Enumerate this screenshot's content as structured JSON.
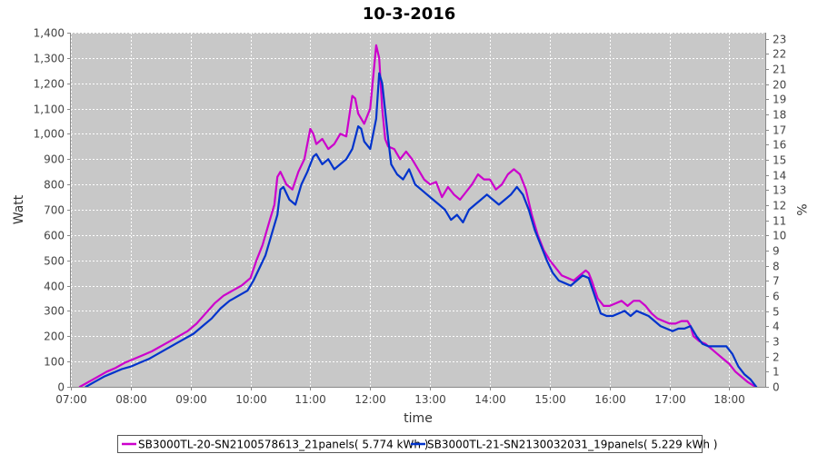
{
  "chart_data": {
    "type": "line",
    "title": "10-3-2016",
    "xlabel": "time",
    "ylabel": "Watt",
    "y2label": "%",
    "xlim": [
      7.0,
      18.6
    ],
    "ylim": [
      0,
      1400
    ],
    "y2lim": [
      0,
      23.4
    ],
    "x_ticks": [
      {
        "v": 7,
        "label": "07:00"
      },
      {
        "v": 8,
        "label": "08:00"
      },
      {
        "v": 9,
        "label": "09:00"
      },
      {
        "v": 10,
        "label": "10:00"
      },
      {
        "v": 11,
        "label": "11:00"
      },
      {
        "v": 12,
        "label": "12:00"
      },
      {
        "v": 13,
        "label": "13:00"
      },
      {
        "v": 14,
        "label": "14:00"
      },
      {
        "v": 15,
        "label": "15:00"
      },
      {
        "v": 16,
        "label": "16:00"
      },
      {
        "v": 17,
        "label": "17:00"
      },
      {
        "v": 18,
        "label": "18:00"
      }
    ],
    "y_ticks": [
      {
        "v": 0,
        "label": "0"
      },
      {
        "v": 100,
        "label": "100"
      },
      {
        "v": 200,
        "label": "200"
      },
      {
        "v": 300,
        "label": "300"
      },
      {
        "v": 400,
        "label": "400"
      },
      {
        "v": 500,
        "label": "500"
      },
      {
        "v": 600,
        "label": "600"
      },
      {
        "v": 700,
        "label": "700"
      },
      {
        "v": 800,
        "label": "800"
      },
      {
        "v": 900,
        "label": "900"
      },
      {
        "v": 1000,
        "label": "1,000"
      },
      {
        "v": 1100,
        "label": "1,100"
      },
      {
        "v": 1200,
        "label": "1,200"
      },
      {
        "v": 1300,
        "label": "1,300"
      },
      {
        "v": 1400,
        "label": "1,400"
      }
    ],
    "y2_ticks": [
      {
        "v": 0,
        "label": "0"
      },
      {
        "v": 1,
        "label": "1"
      },
      {
        "v": 2,
        "label": "2"
      },
      {
        "v": 3,
        "label": "3"
      },
      {
        "v": 4,
        "label": "4"
      },
      {
        "v": 5,
        "label": "5"
      },
      {
        "v": 6,
        "label": "6"
      },
      {
        "v": 7,
        "label": "7"
      },
      {
        "v": 8,
        "label": "8"
      },
      {
        "v": 9,
        "label": "9"
      },
      {
        "v": 10,
        "label": "10"
      },
      {
        "v": 11,
        "label": "11"
      },
      {
        "v": 12,
        "label": "12"
      },
      {
        "v": 13,
        "label": "13"
      },
      {
        "v": 14,
        "label": "14"
      },
      {
        "v": 15,
        "label": "15"
      },
      {
        "v": 16,
        "label": "16"
      },
      {
        "v": 17,
        "label": "17"
      },
      {
        "v": 18,
        "label": "18"
      },
      {
        "v": 19,
        "label": "19"
      },
      {
        "v": 20,
        "label": "20"
      },
      {
        "v": 21,
        "label": "21"
      },
      {
        "v": 22,
        "label": "22"
      },
      {
        "v": 23,
        "label": "23"
      }
    ],
    "grid": true,
    "legend_position": "bottom",
    "plot_background": "#c8c8c8",
    "series": [
      {
        "name": "SB3000TL-20-SN2100578613_21panels( 5.774 kWh )",
        "color": "#cc00cc",
        "points": [
          [
            7.15,
            0
          ],
          [
            7.3,
            20
          ],
          [
            7.45,
            40
          ],
          [
            7.6,
            60
          ],
          [
            7.75,
            75
          ],
          [
            7.9,
            95
          ],
          [
            8.05,
            110
          ],
          [
            8.2,
            125
          ],
          [
            8.35,
            140
          ],
          [
            8.5,
            160
          ],
          [
            8.65,
            180
          ],
          [
            8.8,
            200
          ],
          [
            8.95,
            220
          ],
          [
            9.1,
            250
          ],
          [
            9.25,
            290
          ],
          [
            9.4,
            330
          ],
          [
            9.55,
            360
          ],
          [
            9.7,
            380
          ],
          [
            9.85,
            400
          ],
          [
            10.0,
            430
          ],
          [
            10.1,
            500
          ],
          [
            10.2,
            560
          ],
          [
            10.3,
            640
          ],
          [
            10.4,
            720
          ],
          [
            10.45,
            830
          ],
          [
            10.5,
            850
          ],
          [
            10.6,
            800
          ],
          [
            10.7,
            780
          ],
          [
            10.8,
            850
          ],
          [
            10.9,
            900
          ],
          [
            11.0,
            1020
          ],
          [
            11.05,
            1000
          ],
          [
            11.1,
            960
          ],
          [
            11.2,
            980
          ],
          [
            11.3,
            940
          ],
          [
            11.4,
            960
          ],
          [
            11.5,
            1000
          ],
          [
            11.6,
            990
          ],
          [
            11.7,
            1150
          ],
          [
            11.75,
            1140
          ],
          [
            11.8,
            1080
          ],
          [
            11.9,
            1040
          ],
          [
            12.0,
            1100
          ],
          [
            12.1,
            1350
          ],
          [
            12.15,
            1300
          ],
          [
            12.2,
            1100
          ],
          [
            12.25,
            980
          ],
          [
            12.3,
            950
          ],
          [
            12.4,
            940
          ],
          [
            12.5,
            900
          ],
          [
            12.6,
            930
          ],
          [
            12.7,
            900
          ],
          [
            12.8,
            860
          ],
          [
            12.9,
            820
          ],
          [
            13.0,
            800
          ],
          [
            13.1,
            810
          ],
          [
            13.2,
            750
          ],
          [
            13.3,
            790
          ],
          [
            13.4,
            760
          ],
          [
            13.5,
            740
          ],
          [
            13.6,
            770
          ],
          [
            13.7,
            800
          ],
          [
            13.8,
            840
          ],
          [
            13.9,
            820
          ],
          [
            14.0,
            820
          ],
          [
            14.1,
            780
          ],
          [
            14.2,
            800
          ],
          [
            14.3,
            840
          ],
          [
            14.4,
            860
          ],
          [
            14.5,
            840
          ],
          [
            14.6,
            780
          ],
          [
            14.7,
            680
          ],
          [
            14.8,
            600
          ],
          [
            14.9,
            540
          ],
          [
            15.0,
            500
          ],
          [
            15.1,
            470
          ],
          [
            15.2,
            440
          ],
          [
            15.3,
            430
          ],
          [
            15.4,
            420
          ],
          [
            15.5,
            440
          ],
          [
            15.6,
            460
          ],
          [
            15.65,
            450
          ],
          [
            15.7,
            420
          ],
          [
            15.8,
            350
          ],
          [
            15.9,
            320
          ],
          [
            16.0,
            320
          ],
          [
            16.1,
            330
          ],
          [
            16.2,
            340
          ],
          [
            16.3,
            320
          ],
          [
            16.4,
            340
          ],
          [
            16.5,
            340
          ],
          [
            16.6,
            320
          ],
          [
            16.7,
            290
          ],
          [
            16.8,
            270
          ],
          [
            16.9,
            260
          ],
          [
            17.0,
            250
          ],
          [
            17.1,
            250
          ],
          [
            17.2,
            260
          ],
          [
            17.3,
            260
          ],
          [
            17.35,
            240
          ],
          [
            17.4,
            200
          ],
          [
            17.5,
            180
          ],
          [
            17.6,
            170
          ],
          [
            17.7,
            150
          ],
          [
            17.8,
            130
          ],
          [
            17.9,
            110
          ],
          [
            18.0,
            90
          ],
          [
            18.1,
            60
          ],
          [
            18.2,
            40
          ],
          [
            18.3,
            20
          ],
          [
            18.4,
            5
          ],
          [
            18.45,
            0
          ]
        ]
      },
      {
        "name": "SB3000TL-21-SN2130032031_19panels( 5.229 kWh )",
        "color": "#0033cc",
        "points": [
          [
            7.25,
            0
          ],
          [
            7.4,
            20
          ],
          [
            7.55,
            40
          ],
          [
            7.7,
            55
          ],
          [
            7.85,
            70
          ],
          [
            8.0,
            80
          ],
          [
            8.15,
            95
          ],
          [
            8.3,
            110
          ],
          [
            8.45,
            130
          ],
          [
            8.6,
            150
          ],
          [
            8.75,
            170
          ],
          [
            8.9,
            190
          ],
          [
            9.05,
            210
          ],
          [
            9.2,
            240
          ],
          [
            9.35,
            270
          ],
          [
            9.5,
            310
          ],
          [
            9.65,
            340
          ],
          [
            9.8,
            360
          ],
          [
            9.95,
            380
          ],
          [
            10.05,
            420
          ],
          [
            10.15,
            470
          ],
          [
            10.25,
            520
          ],
          [
            10.35,
            600
          ],
          [
            10.45,
            680
          ],
          [
            10.5,
            780
          ],
          [
            10.55,
            790
          ],
          [
            10.65,
            740
          ],
          [
            10.75,
            720
          ],
          [
            10.85,
            800
          ],
          [
            10.95,
            850
          ],
          [
            11.05,
            910
          ],
          [
            11.1,
            920
          ],
          [
            11.2,
            880
          ],
          [
            11.3,
            900
          ],
          [
            11.4,
            860
          ],
          [
            11.5,
            880
          ],
          [
            11.6,
            900
          ],
          [
            11.7,
            940
          ],
          [
            11.8,
            1030
          ],
          [
            11.85,
            1020
          ],
          [
            11.9,
            970
          ],
          [
            12.0,
            940
          ],
          [
            12.1,
            1060
          ],
          [
            12.15,
            1240
          ],
          [
            12.2,
            1200
          ],
          [
            12.3,
            980
          ],
          [
            12.35,
            880
          ],
          [
            12.45,
            840
          ],
          [
            12.55,
            820
          ],
          [
            12.65,
            860
          ],
          [
            12.75,
            800
          ],
          [
            12.85,
            780
          ],
          [
            12.95,
            760
          ],
          [
            13.05,
            740
          ],
          [
            13.15,
            720
          ],
          [
            13.25,
            700
          ],
          [
            13.35,
            660
          ],
          [
            13.45,
            680
          ],
          [
            13.55,
            650
          ],
          [
            13.65,
            700
          ],
          [
            13.75,
            720
          ],
          [
            13.85,
            740
          ],
          [
            13.95,
            760
          ],
          [
            14.05,
            740
          ],
          [
            14.15,
            720
          ],
          [
            14.25,
            740
          ],
          [
            14.35,
            760
          ],
          [
            14.45,
            790
          ],
          [
            14.55,
            760
          ],
          [
            14.65,
            700
          ],
          [
            14.75,
            620
          ],
          [
            14.85,
            560
          ],
          [
            14.95,
            500
          ],
          [
            15.05,
            450
          ],
          [
            15.15,
            420
          ],
          [
            15.25,
            410
          ],
          [
            15.35,
            400
          ],
          [
            15.45,
            420
          ],
          [
            15.55,
            440
          ],
          [
            15.65,
            430
          ],
          [
            15.75,
            360
          ],
          [
            15.85,
            290
          ],
          [
            15.95,
            280
          ],
          [
            16.05,
            280
          ],
          [
            16.15,
            290
          ],
          [
            16.25,
            300
          ],
          [
            16.35,
            280
          ],
          [
            16.45,
            300
          ],
          [
            16.55,
            290
          ],
          [
            16.65,
            280
          ],
          [
            16.75,
            260
          ],
          [
            16.85,
            240
          ],
          [
            16.95,
            230
          ],
          [
            17.05,
            220
          ],
          [
            17.15,
            230
          ],
          [
            17.25,
            230
          ],
          [
            17.35,
            240
          ],
          [
            17.45,
            200
          ],
          [
            17.55,
            170
          ],
          [
            17.65,
            160
          ],
          [
            17.75,
            160
          ],
          [
            17.85,
            160
          ],
          [
            17.95,
            160
          ],
          [
            18.05,
            130
          ],
          [
            18.15,
            80
          ],
          [
            18.25,
            50
          ],
          [
            18.35,
            30
          ],
          [
            18.45,
            0
          ]
        ]
      }
    ]
  }
}
